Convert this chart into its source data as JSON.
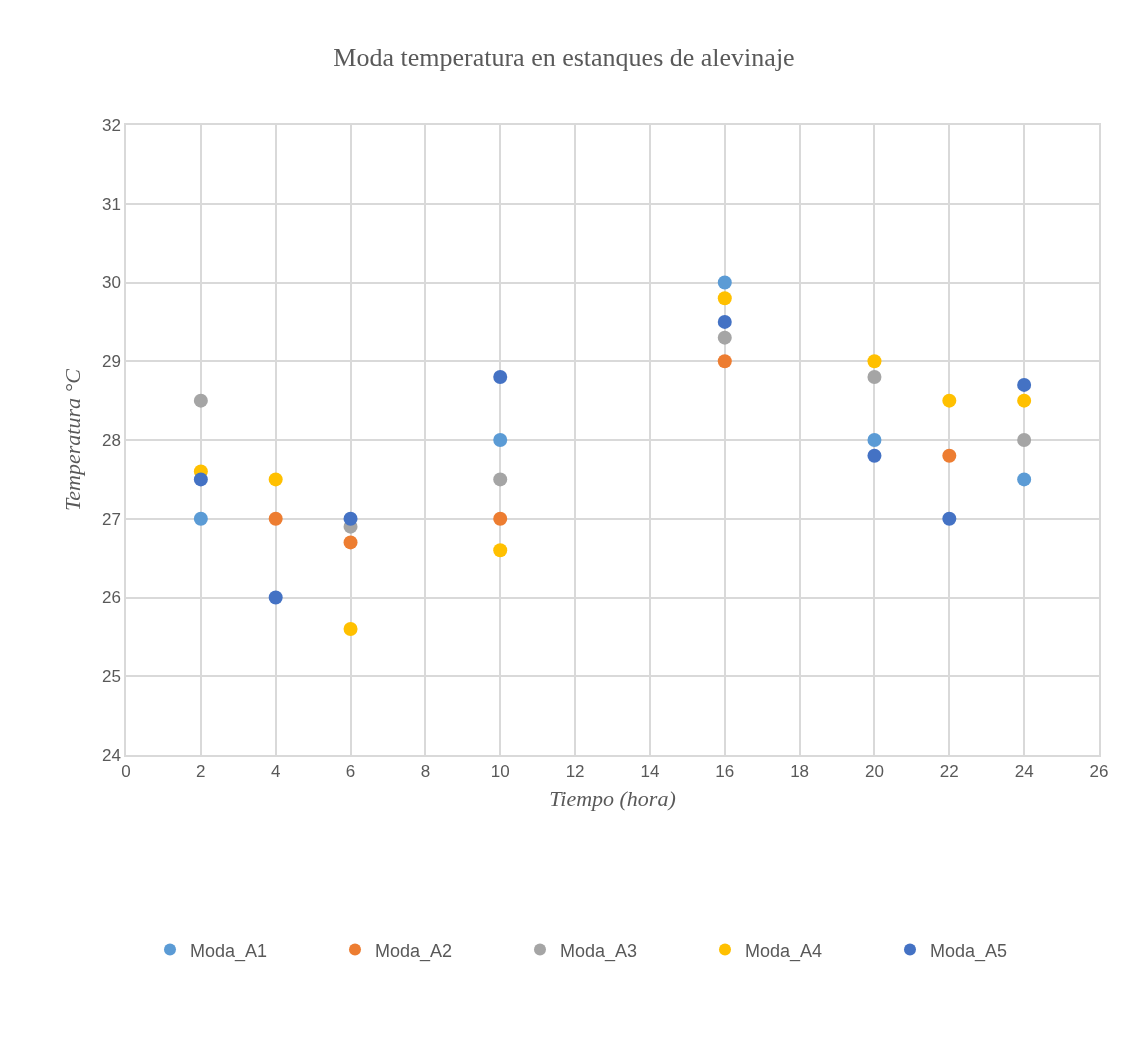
{
  "chart_data": {
    "type": "scatter",
    "title": "Moda temperatura en estanques de alevinaje",
    "xlabel": "Tiempo (hora)",
    "ylabel": "Temperatura °C",
    "x": [
      2,
      4,
      6,
      10,
      16,
      20,
      22,
      24
    ],
    "series": [
      {
        "name": "Moda_A1",
        "color": "#5b9bd5",
        "values": [
          27,
          null,
          null,
          28,
          30,
          28,
          null,
          27.5
        ]
      },
      {
        "name": "Moda_A2",
        "color": "#ed7d31",
        "values": [
          null,
          27,
          26.7,
          27,
          29,
          null,
          27.8,
          null
        ]
      },
      {
        "name": "Moda_A3",
        "color": "#a5a5a5",
        "values": [
          28.5,
          null,
          26.9,
          27.5,
          29.3,
          28.8,
          null,
          28.0
        ]
      },
      {
        "name": "Moda_A4",
        "color": "#ffc000",
        "values": [
          27.6,
          27.5,
          25.6,
          26.6,
          29.8,
          29.0,
          28.5,
          28.5
        ]
      },
      {
        "name": "Moda_A5",
        "color": "#4472c4",
        "values": [
          27.5,
          26,
          27,
          28.8,
          29.5,
          27.8,
          27,
          28.7
        ]
      }
    ],
    "xlim": [
      0,
      26
    ],
    "xticks": [
      0,
      2,
      4,
      6,
      8,
      10,
      12,
      14,
      16,
      18,
      20,
      22,
      24,
      26
    ],
    "ylim": [
      24,
      32
    ],
    "yticks": [
      24,
      25,
      26,
      27,
      28,
      29,
      30,
      31,
      32
    ],
    "grid": true,
    "legend": "bottom",
    "marker": "circle"
  }
}
